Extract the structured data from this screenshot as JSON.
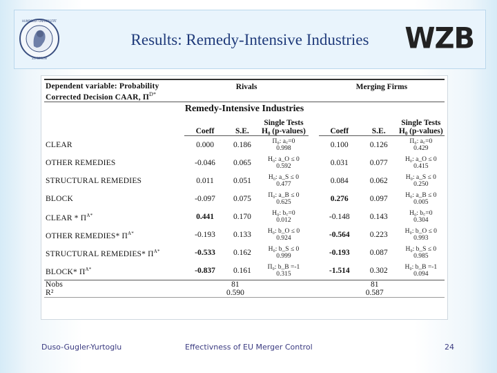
{
  "header": {
    "title": "Results: Remedy-Intensive Industries",
    "logo_text": "WZB",
    "seal_text": "HUMBOLDT-UNIVERSITÄT ZU BERLIN"
  },
  "table": {
    "depvar_line1": "Dependent variable: Probability",
    "depvar_line2": "Corrected Decision CAAR, Π",
    "depvar_sup": "D*",
    "group_rivals": "Rivals",
    "group_merging": "Merging Firms",
    "section_title": "Remedy-Intensive Industries",
    "col_coeff": "Coeff",
    "col_se": "S.E.",
    "col_single_tests": "Single Tests H₀ (p-values)",
    "rows": [
      {
        "label": "CLEAR",
        "r_coeff": "0.000",
        "r_se": "0.186",
        "r_test": "Π₀: a꜀=0",
        "r_p": "0.998",
        "m_coeff": "0.100",
        "m_se": "0.126",
        "m_test": "Π₀: a꜀=0",
        "m_p": "0.429",
        "r_bold": false,
        "m_bold": false
      },
      {
        "label": "OTHER REMEDIES",
        "r_coeff": "-0.046",
        "r_se": "0.065",
        "r_test": "H₀: a_O ≤ 0",
        "r_p": "0.592",
        "m_coeff": "0.031",
        "m_se": "0.077",
        "m_test": "H₀: a_O ≤ 0",
        "m_p": "0.415",
        "r_bold": false,
        "m_bold": false
      },
      {
        "label": "STRUCTURAL REMEDIES",
        "r_coeff": "0.011",
        "r_se": "0.051",
        "r_test": "H₀: a_S ≤ 0",
        "r_p": "0.477",
        "m_coeff": "0.084",
        "m_se": "0.062",
        "m_test": "H₀: a_S ≤ 0",
        "m_p": "0.250",
        "r_bold": false,
        "m_bold": false
      },
      {
        "label": "BLOCK",
        "r_coeff": "-0.097",
        "r_se": "0.075",
        "r_test": "Π₀: a_B ≤ 0",
        "r_p": "0.625",
        "m_coeff": "0.276",
        "m_se": "0.097",
        "m_test": "H₀: a_B ≤ 0",
        "m_p": "0.005",
        "r_bold": false,
        "m_bold": true
      },
      {
        "label": "CLEAR * Π",
        "label_sup": "A*",
        "r_coeff": "0.441",
        "r_se": "0.170",
        "r_test": "H₀: b꜀=0",
        "r_p": "0.012",
        "m_coeff": "-0.148",
        "m_se": "0.143",
        "m_test": "H₀: b꜀=0",
        "m_p": "0.304",
        "r_bold": true,
        "m_bold": false
      },
      {
        "label": "OTHER REMEDIES* Π",
        "label_sup": "A*",
        "r_coeff": "-0.193",
        "r_se": "0.133",
        "r_test": "H₀: b_O ≤ 0",
        "r_p": "0.924",
        "m_coeff": "-0.564",
        "m_se": "0.223",
        "m_test": "H₀: b_O ≤ 0",
        "m_p": "0.993",
        "r_bold": false,
        "m_bold": true
      },
      {
        "label": "STRUCTURAL REMEDIES* Π",
        "label_sup": "A*",
        "r_coeff": "-0.533",
        "r_se": "0.162",
        "r_test": "H₀: b_S ≤ 0",
        "r_p": "0.999",
        "m_coeff": "-0.193",
        "m_se": "0.087",
        "m_test": "H₀: b_S ≤ 0",
        "m_p": "0.985",
        "r_bold": true,
        "m_bold": true
      },
      {
        "label": "BLOCK* Π",
        "label_sup": "A*",
        "r_coeff": "-0.837",
        "r_se": "0.161",
        "r_test": "Π₀: b_B =-1",
        "r_p": "0.315",
        "m_coeff": "-1.514",
        "m_se": "0.302",
        "m_test": "H₀: b_B =-1",
        "m_p": "0.094",
        "r_bold": true,
        "m_bold": true
      }
    ],
    "nobs_label": "Nobs",
    "r2_label": "R²",
    "rivals_nobs": "81",
    "rivals_r2": "0.590",
    "merging_nobs": "81",
    "merging_r2": "0.587"
  },
  "footer": {
    "authors": "Duso-Gugler-Yurtoglu",
    "talk_title": "Effectivness of EU Merger Control",
    "page_number": "24"
  }
}
